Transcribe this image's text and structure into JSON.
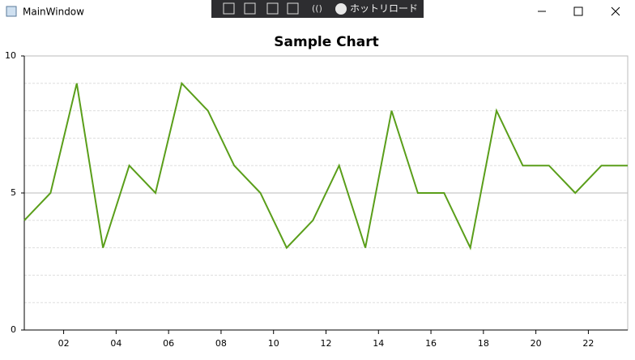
{
  "window": {
    "title": "MainWindow",
    "toolbar_label": "ホットリロード"
  },
  "chart_data": {
    "type": "line",
    "title": "Sample Chart",
    "x": [
      0.5,
      1.5,
      2.5,
      3.5,
      4.5,
      5.5,
      6.5,
      7.5,
      8.5,
      9.5,
      10.5,
      11.5,
      12.5,
      13.5,
      14.5,
      15.5,
      16.5,
      17.5,
      18.5,
      19.5,
      20.5,
      21.5,
      22.5,
      23.5
    ],
    "series": [
      {
        "color": "#5a9e1a",
        "values": [
          4,
          5,
          9,
          3,
          6,
          5,
          9,
          8,
          6,
          5,
          3,
          4,
          6,
          3,
          8,
          5,
          5,
          3,
          8,
          6,
          6,
          5,
          6,
          6
        ]
      }
    ],
    "xlim": [
      0.5,
      23.5
    ],
    "xticks": [
      {
        "value": 2,
        "label": "02"
      },
      {
        "value": 4,
        "label": "04"
      },
      {
        "value": 6,
        "label": "06"
      },
      {
        "value": 8,
        "label": "08"
      },
      {
        "value": 10,
        "label": "10"
      },
      {
        "value": 12,
        "label": "12"
      },
      {
        "value": 14,
        "label": "14"
      },
      {
        "value": 16,
        "label": "16"
      },
      {
        "value": 18,
        "label": "18"
      },
      {
        "value": 20,
        "label": "20"
      },
      {
        "value": 22,
        "label": "22"
      }
    ],
    "ylim": [
      0,
      10
    ],
    "yticks": [
      0,
      5,
      10
    ],
    "yminor": [
      1,
      2,
      3,
      4,
      6,
      7,
      8,
      9
    ],
    "grid": true
  }
}
